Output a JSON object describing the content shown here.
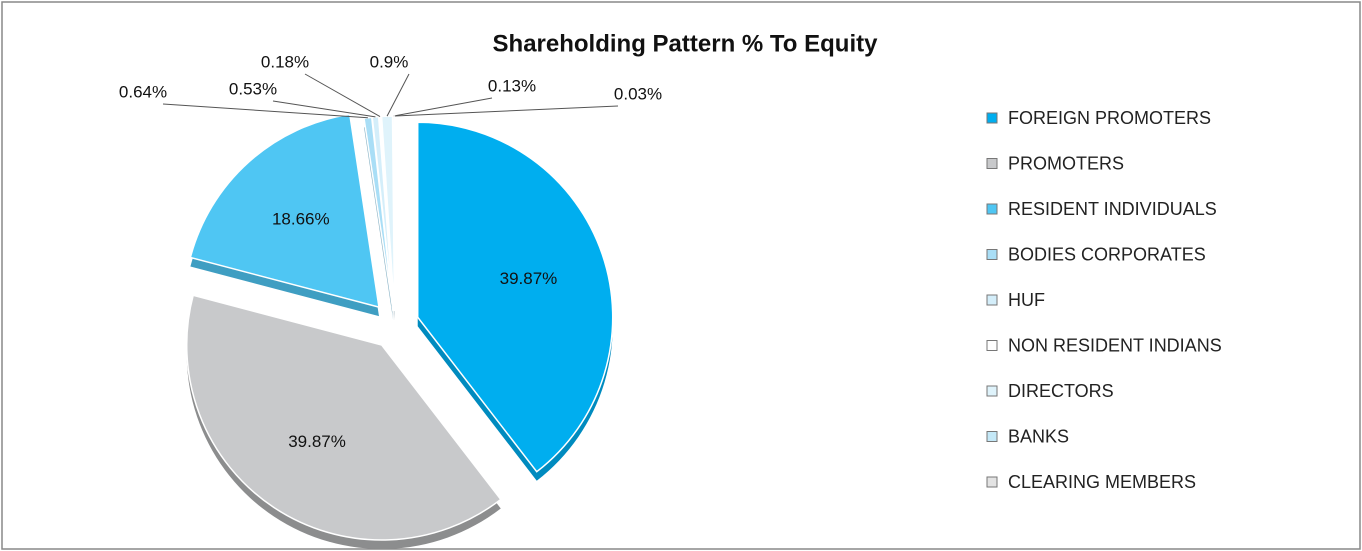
{
  "chart_data": {
    "type": "pie",
    "title": "Shareholding Pattern % To Equity",
    "categories": [
      "FOREIGN PROMOTERS",
      "PROMOTERS",
      "RESIDENT INDIVIDUALS",
      "BODIES CORPORATES",
      "HUF",
      "NON RESIDENT INDIANS",
      "DIRECTORS",
      "BANKS",
      "CLEARING MEMBERS"
    ],
    "values": [
      39.87,
      39.87,
      18.66,
      0.64,
      0.53,
      0.18,
      0.9,
      0.13,
      0.03
    ],
    "value_labels": [
      "39.87%",
      "39.87%",
      "18.66%",
      "0.64%",
      "0.53%",
      "0.18%",
      "0.9%",
      "0.13%",
      "0.03%"
    ],
    "colors": [
      "#00aeef",
      "#c8c9cb",
      "#4fc6f3",
      "#a9def6",
      "#d4eefa",
      "#ffffff",
      "#dff3fb",
      "#c4e8f7",
      "#e3e3e3"
    ],
    "legend": "right"
  }
}
